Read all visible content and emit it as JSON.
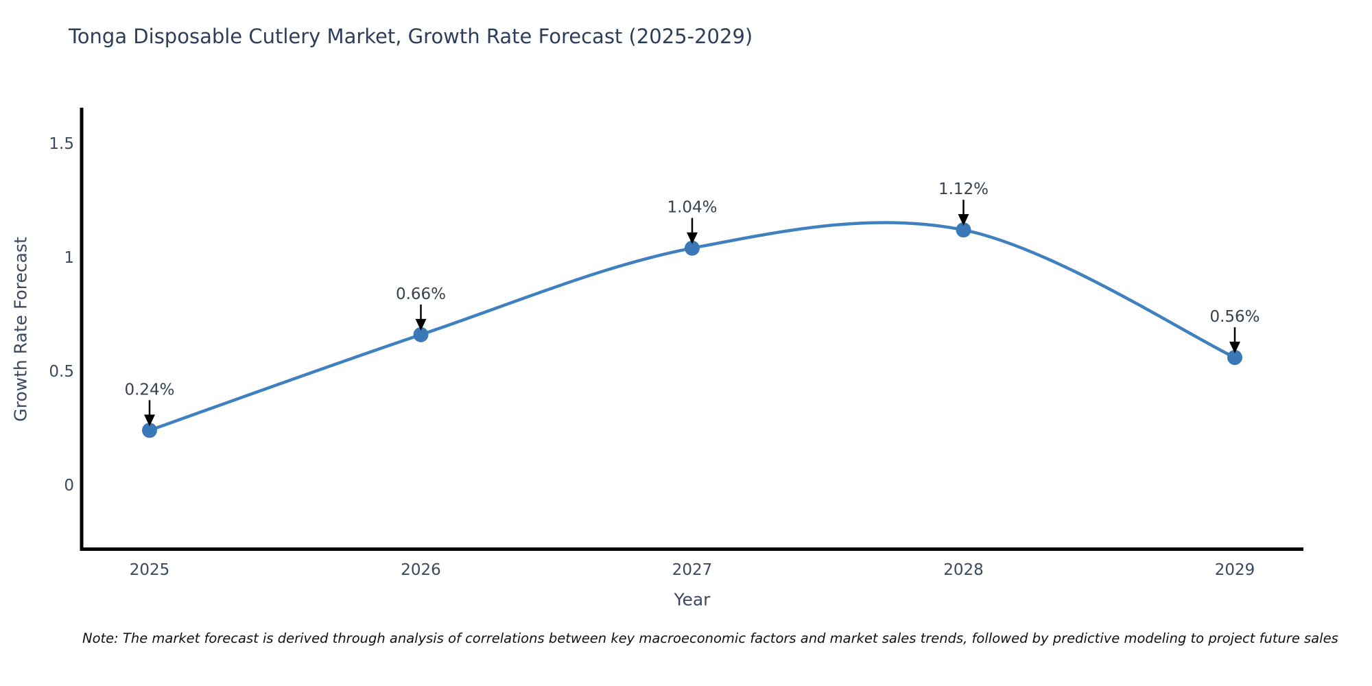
{
  "title": "Tonga Disposable Cutlery Market, Growth Rate Forecast (2025-2029)",
  "note": "Note: The market forecast is derived through analysis of correlations between key macroeconomic factors and market sales trends, followed by predictive modeling to project future sales",
  "chart_data": {
    "type": "line",
    "title": "Tonga Disposable Cutlery Market, Growth Rate Forecast (2025-2029)",
    "xlabel": "Year",
    "ylabel": "Growth Rate Forecast",
    "x": [
      2025,
      2026,
      2027,
      2028,
      2029
    ],
    "xtick_labels": [
      "2025",
      "2026",
      "2027",
      "2028",
      "2029"
    ],
    "values": [
      0.24,
      0.66,
      1.04,
      1.12,
      0.56
    ],
    "point_labels": [
      "0.24%",
      "0.66%",
      "1.04%",
      "1.12%",
      "0.56%"
    ],
    "yticks": [
      0,
      0.5,
      1,
      1.5
    ],
    "ytick_labels": [
      "0",
      "0.5",
      "1",
      "1.5"
    ],
    "ylim": [
      -0.28,
      1.66
    ],
    "grid": false,
    "legend": "none",
    "smooth": true,
    "line_color": "#4080bf",
    "marker_color": "#3a78b8",
    "axis_color": "#000000",
    "annotation_arrow_color": "#000000",
    "text_color": "#3b485e",
    "title_color": "#2e3d59"
  }
}
